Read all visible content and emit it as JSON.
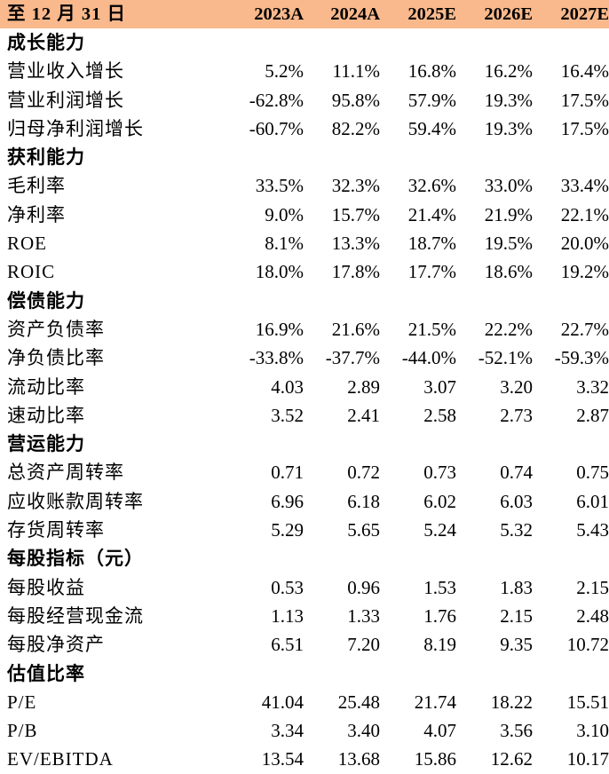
{
  "header": {
    "label": "至 12 月 31 日",
    "years": [
      "2023A",
      "2024A",
      "2025E",
      "2026E",
      "2027E"
    ],
    "background": "#F9B98C"
  },
  "rows": [
    {
      "type": "section",
      "label": "成长能力",
      "values": []
    },
    {
      "type": "data",
      "label": "营业收入增长",
      "values": [
        "5.2%",
        "11.1%",
        "16.8%",
        "16.2%",
        "16.4%"
      ]
    },
    {
      "type": "data",
      "label": "营业利润增长",
      "values": [
        "-62.8%",
        "95.8%",
        "57.9%",
        "19.3%",
        "17.5%"
      ]
    },
    {
      "type": "data",
      "label": "归母净利润增长",
      "values": [
        "-60.7%",
        "82.2%",
        "59.4%",
        "19.3%",
        "17.5%"
      ]
    },
    {
      "type": "section",
      "label": "获利能力",
      "values": []
    },
    {
      "type": "data",
      "label": "毛利率",
      "values": [
        "33.5%",
        "32.3%",
        "32.6%",
        "33.0%",
        "33.4%"
      ]
    },
    {
      "type": "data",
      "label": "净利率",
      "values": [
        "9.0%",
        "15.7%",
        "21.4%",
        "21.9%",
        "22.1%"
      ]
    },
    {
      "type": "data",
      "label": "ROE",
      "values": [
        "8.1%",
        "13.3%",
        "18.7%",
        "19.5%",
        "20.0%"
      ]
    },
    {
      "type": "data",
      "label": "ROIC",
      "values": [
        "18.0%",
        "17.8%",
        "17.7%",
        "18.6%",
        "19.2%"
      ]
    },
    {
      "type": "section",
      "label": "偿债能力",
      "values": []
    },
    {
      "type": "data",
      "label": "资产负债率",
      "values": [
        "16.9%",
        "21.6%",
        "21.5%",
        "22.2%",
        "22.7%"
      ]
    },
    {
      "type": "data",
      "label": "净负债比率",
      "values": [
        "-33.8%",
        "-37.7%",
        "-44.0%",
        "-52.1%",
        "-59.3%"
      ]
    },
    {
      "type": "data",
      "label": "流动比率",
      "values": [
        "4.03",
        "2.89",
        "3.07",
        "3.20",
        "3.32"
      ]
    },
    {
      "type": "data",
      "label": "速动比率",
      "values": [
        "3.52",
        "2.41",
        "2.58",
        "2.73",
        "2.87"
      ]
    },
    {
      "type": "section",
      "label": "营运能力",
      "values": []
    },
    {
      "type": "data",
      "label": "总资产周转率",
      "values": [
        "0.71",
        "0.72",
        "0.73",
        "0.74",
        "0.75"
      ]
    },
    {
      "type": "data",
      "label": "应收账款周转率",
      "values": [
        "6.96",
        "6.18",
        "6.02",
        "6.03",
        "6.01"
      ]
    },
    {
      "type": "data",
      "label": "存货周转率",
      "values": [
        "5.29",
        "5.65",
        "5.24",
        "5.32",
        "5.43"
      ]
    },
    {
      "type": "section",
      "label": "每股指标（元）",
      "values": []
    },
    {
      "type": "data",
      "label": "每股收益",
      "values": [
        "0.53",
        "0.96",
        "1.53",
        "1.83",
        "2.15"
      ]
    },
    {
      "type": "data",
      "label": "每股经营现金流",
      "values": [
        "1.13",
        "1.33",
        "1.76",
        "2.15",
        "2.48"
      ]
    },
    {
      "type": "data",
      "label": "每股净资产",
      "values": [
        "6.51",
        "7.20",
        "8.19",
        "9.35",
        "10.72"
      ]
    },
    {
      "type": "section",
      "label": "估值比率",
      "values": []
    },
    {
      "type": "data",
      "label": "P/E",
      "values": [
        "41.04",
        "25.48",
        "21.74",
        "18.22",
        "15.51"
      ]
    },
    {
      "type": "data",
      "label": "P/B",
      "values": [
        "3.34",
        "3.40",
        "4.07",
        "3.56",
        "3.10"
      ]
    },
    {
      "type": "data",
      "label": "EV/EBITDA",
      "values": [
        "13.54",
        "13.68",
        "15.86",
        "12.62",
        "10.17"
      ]
    }
  ]
}
